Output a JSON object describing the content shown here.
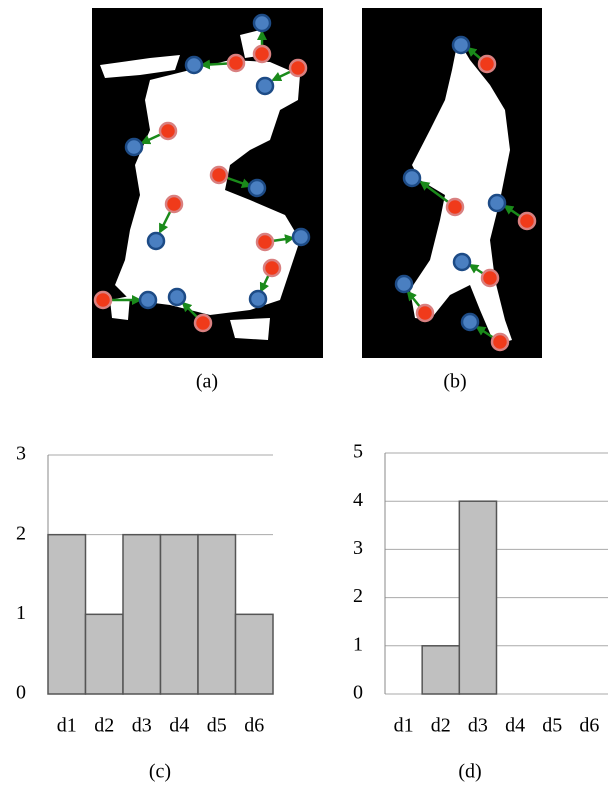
{
  "images": [
    {
      "caption": "(a)"
    },
    {
      "caption": "(b)"
    }
  ],
  "chart_data": [
    {
      "type": "bar",
      "caption": "(c)",
      "categories": [
        "d1",
        "d2",
        "d3",
        "d4",
        "d5",
        "d6"
      ],
      "values": [
        2,
        1,
        2,
        2,
        2,
        1
      ],
      "color": "#c0c0c0",
      "ylim": [
        0,
        3
      ],
      "yticks": [
        0,
        1,
        2,
        3
      ],
      "grid": true
    },
    {
      "type": "bar",
      "caption": "(d)",
      "categories": [
        "d1",
        "d2",
        "d3",
        "d4",
        "d5",
        "d6"
      ],
      "values": [
        0,
        1,
        4,
        0,
        0,
        0
      ],
      "color": "#c0c0c0",
      "ylim": [
        0,
        5
      ],
      "yticks": [
        0,
        1,
        2,
        3,
        4,
        5
      ],
      "grid": true
    }
  ]
}
